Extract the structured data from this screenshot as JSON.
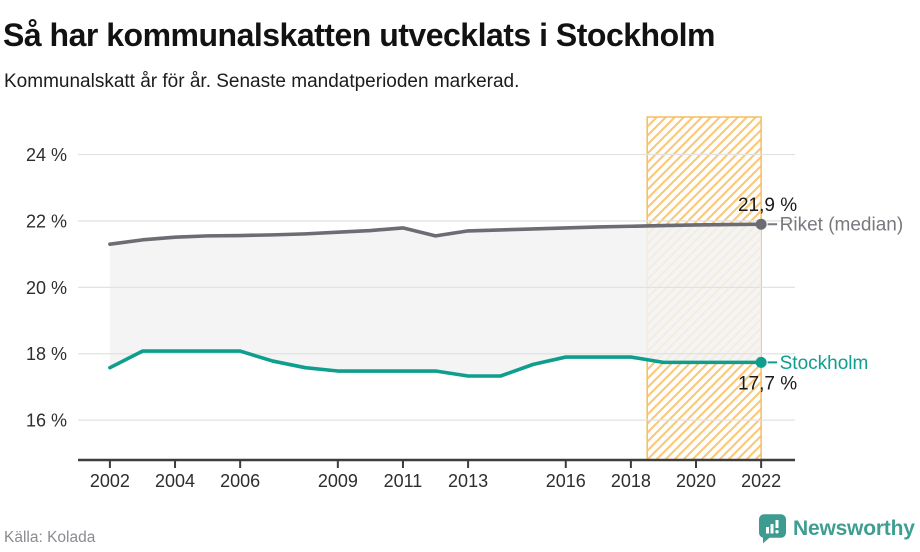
{
  "header": {
    "title": "Så har kommunalskatten utvecklats i Stockholm",
    "subtitle": "Kommunalskatt år för år. Senaste mandatperioden markerad."
  },
  "chart_data": {
    "type": "line",
    "title": "Så har kommunalskatten utvecklats i Stockholm",
    "subtitle": "Kommunalskatt år för år. Senaste mandatperioden markerad.",
    "x": [
      2002,
      2003,
      2004,
      2005,
      2006,
      2007,
      2008,
      2009,
      2010,
      2011,
      2012,
      2013,
      2014,
      2015,
      2016,
      2017,
      2018,
      2019,
      2020,
      2021,
      2022
    ],
    "x_tick_years": [
      2002,
      2004,
      2006,
      2009,
      2011,
      2013,
      2016,
      2018,
      2020,
      2022
    ],
    "y_ticks": [
      16,
      18,
      20,
      22,
      24
    ],
    "y_tick_format": "{v} %",
    "xlim": [
      2001.02,
      2023.04
    ],
    "ylim": [
      14.8,
      25.13
    ],
    "grid": true,
    "legend_position": "right-of-line-ends",
    "series": [
      {
        "name": "Riket (median)",
        "color": "#6e6c73",
        "label_color": "#7a787f",
        "end_label": "21,9 %",
        "end_label_side": "above",
        "values": [
          21.3,
          21.43,
          21.51,
          21.55,
          21.56,
          21.58,
          21.61,
          21.66,
          21.71,
          21.79,
          21.55,
          21.7,
          21.73,
          21.76,
          21.79,
          21.82,
          21.84,
          21.86,
          21.88,
          21.89,
          21.9
        ]
      },
      {
        "name": "Stockholm",
        "color": "#0f9e8e",
        "label_color": "#0f9e8e",
        "end_label": "17,7 %",
        "end_label_side": "below",
        "values": [
          17.58,
          18.08,
          18.08,
          18.08,
          18.08,
          17.78,
          17.58,
          17.48,
          17.48,
          17.48,
          17.48,
          17.33,
          17.33,
          17.68,
          17.9,
          17.9,
          17.9,
          17.74,
          17.74,
          17.74,
          17.74
        ]
      }
    ],
    "fill_between": {
      "color": "#f2f2f2",
      "opacity": 0.85
    },
    "highlight_band": {
      "from": 2018.5,
      "to": 2022,
      "meaning": "Senaste mandatperioden",
      "hatch_color": "#f9c97c",
      "border_color": "#f4bd62"
    }
  },
  "footer": {
    "source": "Källa: Kolada",
    "brand": "Newsworthy"
  },
  "colors": {
    "axis": "#3d3d3d",
    "gridline": "#e2e2e2",
    "tick_label": "#2e2e2e",
    "value_label": "#1a1a1a",
    "brand_teal": "#3d9c8f"
  }
}
